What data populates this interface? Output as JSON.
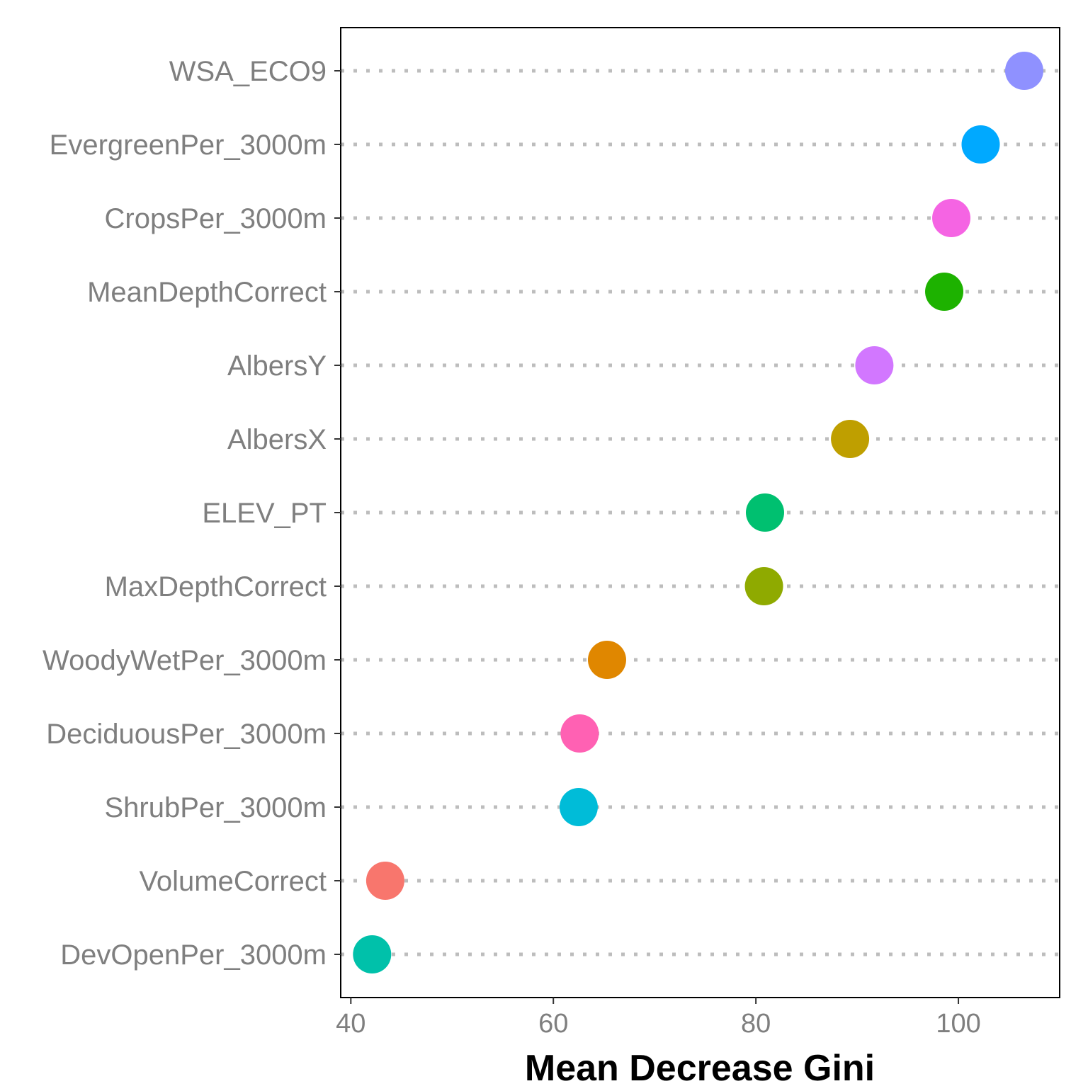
{
  "chart_data": {
    "type": "scatter",
    "subtype": "dot-plot",
    "title": "",
    "xlabel": "Mean Decrease Gini",
    "ylabel": "",
    "xlim": [
      39,
      110
    ],
    "x_ticks": [
      40,
      60,
      80,
      100
    ],
    "grid": "dotted horizontal guide lines per category",
    "legend": "none",
    "categories": [
      "WSA_ECO9",
      "EvergreenPer_3000m",
      "CropsPer_3000m",
      "MeanDepthCorrect",
      "AlbersY",
      "AlbersX",
      "ELEV_PT",
      "MaxDepthCorrect",
      "WoodyWetPer_3000m",
      "DeciduousPer_3000m",
      "ShrubPer_3000m",
      "VolumeCorrect",
      "DevOpenPer_3000m"
    ],
    "values": [
      106.5,
      102.2,
      99.3,
      98.6,
      91.7,
      89.3,
      80.9,
      80.8,
      65.3,
      62.6,
      62.5,
      43.4,
      42.1
    ],
    "colors": [
      "#8F91FF",
      "#00A9FF",
      "#F564E3",
      "#1DB200",
      "#D277FF",
      "#BF9F00",
      "#00C070",
      "#8FAA00",
      "#E08700",
      "#FF61B3",
      "#00BCD8",
      "#F8766D",
      "#00C1AA"
    ]
  }
}
